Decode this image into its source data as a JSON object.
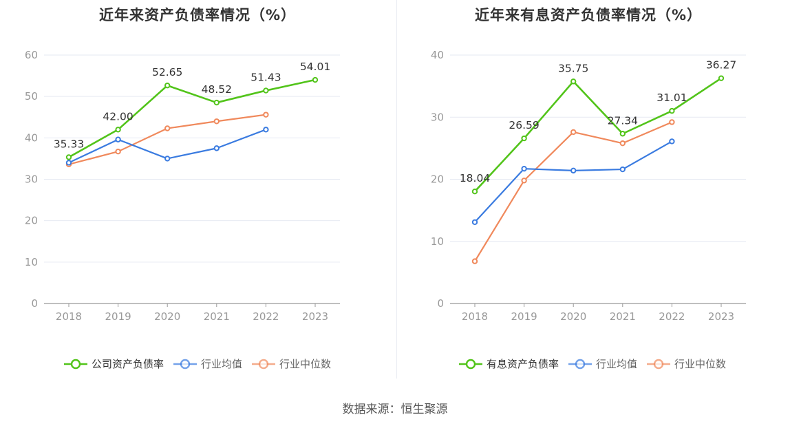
{
  "source_label": "数据来源：恒生聚源",
  "colors": {
    "company": "#52c41a",
    "avg": "#3a7be0",
    "median": "#f0895c",
    "grid": "#e6e9f2",
    "axis": "#999999",
    "tick": "#999999",
    "label": "#333333"
  },
  "chart_data": [
    {
      "type": "line",
      "title": "近年来资产负债率情况（%）",
      "x": [
        "2018",
        "2019",
        "2020",
        "2021",
        "2022",
        "2023"
      ],
      "yticks": [
        0,
        10,
        20,
        30,
        40,
        50,
        60
      ],
      "ylim": [
        0,
        60
      ],
      "grid": true,
      "legend_position": "bottom",
      "series": [
        {
          "name": "公司资产负债率",
          "color": "#52c41a",
          "values": [
            35.33,
            42.0,
            52.65,
            48.52,
            51.43,
            54.01
          ],
          "labels": [
            "35.33",
            "42.00",
            "52.65",
            "48.52",
            "51.43",
            "54.01"
          ]
        },
        {
          "name": "行业均值",
          "color": "#3a7be0",
          "values": [
            34.0,
            39.6,
            35.0,
            37.5,
            42.0,
            null
          ]
        },
        {
          "name": "行业中位数",
          "color": "#f0895c",
          "values": [
            33.6,
            36.7,
            42.3,
            44.0,
            45.6,
            null
          ]
        }
      ]
    },
    {
      "type": "line",
      "title": "近年来有息资产负债率情况（%）",
      "x": [
        "2018",
        "2019",
        "2020",
        "2021",
        "2022",
        "2023"
      ],
      "yticks": [
        0,
        10,
        20,
        30,
        40
      ],
      "ylim": [
        0,
        40
      ],
      "grid": true,
      "legend_position": "bottom",
      "series": [
        {
          "name": "有息资产负债率",
          "color": "#52c41a",
          "values": [
            18.04,
            26.59,
            35.75,
            27.34,
            31.01,
            36.27
          ],
          "labels": [
            "18.04",
            "26.59",
            "35.75",
            "27.34",
            "31.01",
            "36.27"
          ]
        },
        {
          "name": "行业均值",
          "color": "#3a7be0",
          "values": [
            13.1,
            21.7,
            21.4,
            21.6,
            26.1,
            null
          ]
        },
        {
          "name": "行业中位数",
          "color": "#f0895c",
          "values": [
            6.8,
            19.8,
            27.6,
            25.8,
            29.2,
            null
          ]
        }
      ]
    }
  ]
}
